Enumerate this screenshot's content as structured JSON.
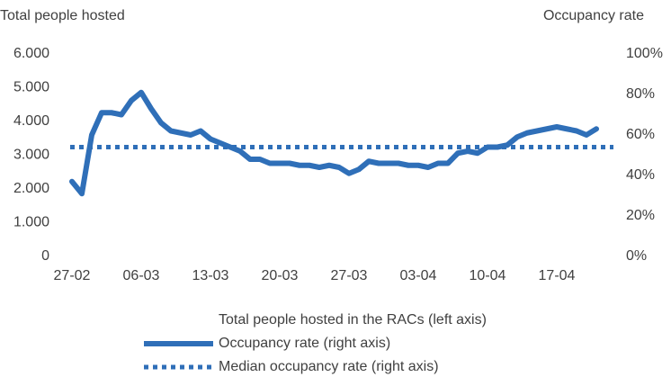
{
  "chart_data": {
    "type": "line",
    "y_axis_title": "Total people hosted",
    "y2_axis_title": "Occupancy rate",
    "categories": [
      "27-02",
      null,
      null,
      null,
      null,
      null,
      null,
      "06-03",
      null,
      null,
      null,
      null,
      null,
      null,
      "13-03",
      null,
      null,
      null,
      null,
      null,
      null,
      "20-03",
      null,
      null,
      null,
      null,
      null,
      null,
      "27-03",
      null,
      null,
      null,
      null,
      null,
      null,
      "03-04",
      null,
      null,
      null,
      null,
      null,
      null,
      "10-04",
      null,
      null,
      null,
      null,
      null,
      null,
      "17-04",
      null,
      null,
      null,
      null
    ],
    "series": [
      {
        "name": "Total people hosted in the RACs (left axis)"
      },
      {
        "name": "Occupancy rate (right axis)",
        "color": "#2f6fb8",
        "axis": "y2",
        "values": [
          37,
          31,
          60,
          71,
          71,
          70,
          77,
          81,
          73,
          66,
          62,
          61,
          60,
          62,
          58,
          56,
          54,
          52,
          48,
          48,
          46,
          46,
          46,
          45,
          45,
          44,
          45,
          44,
          41,
          43,
          47,
          46,
          46,
          46,
          45,
          45,
          44,
          46,
          46,
          51,
          52,
          51,
          54,
          54,
          55,
          59,
          61,
          62,
          63,
          64,
          63,
          62,
          60,
          63
        ]
      },
      {
        "name": "Median occupancy rate (right axis)",
        "color": "#2f6fb8",
        "axis": "y2",
        "style": "dotted",
        "value": 54
      }
    ],
    "ylim": [
      0,
      6000
    ],
    "yticks": [
      0,
      {
        "value": 1000,
        "label": "1.000"
      },
      {
        "value": 2000,
        "label": "2.000"
      },
      {
        "value": 3000,
        "label": "3.000"
      },
      {
        "value": 4000,
        "label": "4.000"
      },
      {
        "value": 5000,
        "label": "5.000"
      },
      {
        "value": 6000,
        "label": "6.000"
      }
    ],
    "y2lim": [
      0,
      100
    ],
    "y2ticks": [
      {
        "value": 0,
        "label": "0%"
      },
      {
        "value": 20,
        "label": "20%"
      },
      {
        "value": 40,
        "label": "40%"
      },
      {
        "value": 60,
        "label": "60%"
      },
      {
        "value": 80,
        "label": "80%"
      },
      {
        "value": 100,
        "label": "100%"
      }
    ]
  }
}
